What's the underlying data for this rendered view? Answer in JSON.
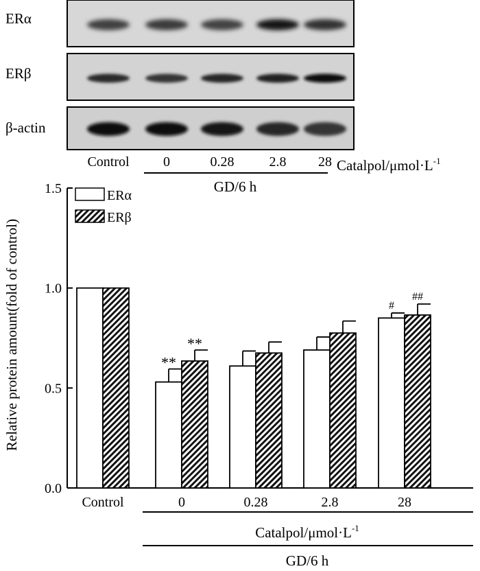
{
  "blot": {
    "rows": [
      {
        "label": "ERα",
        "intensities": [
          0.62,
          0.66,
          0.6,
          0.92,
          0.72
        ],
        "blur": 3.2
      },
      {
        "label": "ERβ",
        "intensities": [
          0.78,
          0.7,
          0.8,
          0.82,
          0.98
        ],
        "blur": 2.2
      },
      {
        "label": "β-actin",
        "intensities": [
          0.95,
          0.96,
          0.9,
          0.8,
          0.7
        ],
        "blur": 2.4
      }
    ],
    "lanes": [
      "Control",
      "0",
      "0.28",
      "2.8",
      "28"
    ],
    "treatment_label": "Catalpol/μmol·L",
    "treatment_exp": "-1",
    "group_label": "GD/6 h"
  },
  "chart_data": {
    "type": "bar",
    "categories": [
      "Control",
      "0",
      "0.28",
      "2.8",
      "28"
    ],
    "series": [
      {
        "name": "ERα",
        "values": [
          1.0,
          0.53,
          0.61,
          0.69,
          0.85
        ],
        "errors": [
          0.0,
          0.065,
          0.075,
          0.065,
          0.025
        ],
        "marks": [
          "",
          "**",
          "",
          "",
          "#"
        ]
      },
      {
        "name": "ERβ",
        "values": [
          1.0,
          0.635,
          0.675,
          0.775,
          0.865
        ],
        "errors": [
          0.0,
          0.055,
          0.055,
          0.06,
          0.055
        ],
        "marks": [
          "",
          "**",
          "",
          "",
          "##"
        ]
      }
    ],
    "ylabel": "Relative protein amount(fold of control)",
    "ylim": [
      0.0,
      1.5
    ],
    "yticks": [
      "0.0",
      "0.5",
      "1.0",
      "1.5"
    ],
    "ytick_values": [
      0.0,
      0.5,
      1.0,
      1.5
    ],
    "xlabel": "Catalpol/μmol·L",
    "xlabel_exp": "-1",
    "group_label": "GD/6 h",
    "legend_position": "top-left",
    "grid": false
  }
}
